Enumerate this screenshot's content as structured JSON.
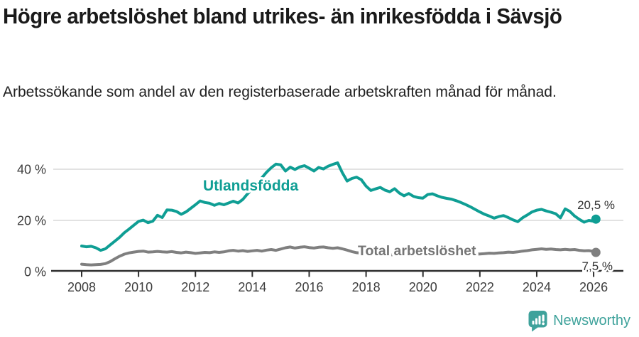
{
  "header": {
    "title": "Högre arbetslöshet bland utrikes- än inrikesfödda i Sävsjö",
    "subtitle": "Arbetssökande som andel av den registerbaserade arbetskraften månad för månad."
  },
  "chart_data": {
    "type": "line",
    "x_unit": "decimal_year",
    "x_range": [
      2008,
      2026.08
    ],
    "ylim": [
      0,
      44
    ],
    "grid": "horizontal-only",
    "legend_position": "inline-labels",
    "yticks": [
      {
        "value": 0,
        "label": "0 %"
      },
      {
        "value": 20,
        "label": "20 %"
      },
      {
        "value": 40,
        "label": "40 %"
      }
    ],
    "grid_values": [
      20,
      40
    ],
    "xticks": [
      {
        "value": 2008,
        "label": "2008"
      },
      {
        "value": 2010,
        "label": "2010"
      },
      {
        "value": 2012,
        "label": "2012"
      },
      {
        "value": 2014,
        "label": "2014"
      },
      {
        "value": 2016,
        "label": "2016"
      },
      {
        "value": 2018,
        "label": "2018"
      },
      {
        "value": 2020,
        "label": "2020"
      },
      {
        "value": 2022,
        "label": "2022"
      },
      {
        "value": 2024,
        "label": "2024"
      },
      {
        "value": 2026,
        "label": "2026"
      }
    ],
    "x": [
      2008.0,
      2008.167,
      2008.333,
      2008.5,
      2008.667,
      2008.833,
      2009.0,
      2009.167,
      2009.333,
      2009.5,
      2009.667,
      2009.833,
      2010.0,
      2010.167,
      2010.333,
      2010.5,
      2010.667,
      2010.833,
      2011.0,
      2011.167,
      2011.333,
      2011.5,
      2011.667,
      2011.833,
      2012.0,
      2012.167,
      2012.333,
      2012.5,
      2012.667,
      2012.833,
      2013.0,
      2013.167,
      2013.333,
      2013.5,
      2013.667,
      2013.833,
      2014.0,
      2014.167,
      2014.333,
      2014.5,
      2014.667,
      2014.833,
      2015.0,
      2015.167,
      2015.333,
      2015.5,
      2015.667,
      2015.833,
      2016.0,
      2016.167,
      2016.333,
      2016.5,
      2016.667,
      2016.833,
      2017.0,
      2017.167,
      2017.333,
      2017.5,
      2017.667,
      2017.833,
      2018.0,
      2018.167,
      2018.333,
      2018.5,
      2018.667,
      2018.833,
      2019.0,
      2019.167,
      2019.333,
      2019.5,
      2019.667,
      2019.833,
      2020.0,
      2020.167,
      2020.333,
      2020.5,
      2020.667,
      2020.833,
      2021.0,
      2021.167,
      2021.333,
      2021.5,
      2021.667,
      2021.833,
      2022.0,
      2022.167,
      2022.333,
      2022.5,
      2022.667,
      2022.833,
      2023.0,
      2023.167,
      2023.333,
      2023.5,
      2023.667,
      2023.833,
      2024.0,
      2024.167,
      2024.333,
      2024.5,
      2024.667,
      2024.833,
      2025.0,
      2025.167,
      2025.333,
      2025.5,
      2025.667,
      2025.833,
      2026.0,
      2026.08
    ],
    "series": [
      {
        "name": "Utlandsfödda",
        "color": "#0f9e94",
        "end_label": "20,5 %",
        "end_value": 20.5,
        "values": [
          10.0,
          9.7,
          9.9,
          9.3,
          8.3,
          8.9,
          10.4,
          11.9,
          13.4,
          15.2,
          16.6,
          18.1,
          19.6,
          20.1,
          19.1,
          19.7,
          22.0,
          21.1,
          24.1,
          24.0,
          23.5,
          22.4,
          23.3,
          24.7,
          26.1,
          27.6,
          27.0,
          26.7,
          25.9,
          26.6,
          26.1,
          26.8,
          27.5,
          26.8,
          28.2,
          30.4,
          32.4,
          34.5,
          36.6,
          38.8,
          40.6,
          42.0,
          41.7,
          39.3,
          40.8,
          39.9,
          40.9,
          41.4,
          40.4,
          39.3,
          40.7,
          40.1,
          41.2,
          41.9,
          42.5,
          38.6,
          35.4,
          36.4,
          36.9,
          35.9,
          33.4,
          31.7,
          32.3,
          32.9,
          31.8,
          31.2,
          32.4,
          30.7,
          29.6,
          30.5,
          29.4,
          28.9,
          28.7,
          30.1,
          30.4,
          29.6,
          29.0,
          28.6,
          28.3,
          27.7,
          27.0,
          26.2,
          25.3,
          24.3,
          23.3,
          22.4,
          21.7,
          20.9,
          21.5,
          21.9,
          21.1,
          20.2,
          19.5,
          21.0,
          22.1,
          23.3,
          24.0,
          24.3,
          23.7,
          23.2,
          22.6,
          21.0,
          24.5,
          23.5,
          21.7,
          20.4,
          19.3,
          20.0,
          19.7,
          20.5
        ]
      },
      {
        "name": "Total arbetslöshet",
        "color": "#7f7f7f",
        "label_color": "#757575",
        "end_label": "7,5 %",
        "end_value": 7.5,
        "values": [
          2.9,
          2.7,
          2.6,
          2.7,
          2.8,
          3.1,
          3.9,
          5.0,
          6.0,
          6.8,
          7.3,
          7.6,
          7.9,
          8.0,
          7.6,
          7.7,
          7.9,
          7.7,
          7.6,
          7.8,
          7.5,
          7.3,
          7.6,
          7.4,
          7.1,
          7.3,
          7.5,
          7.4,
          7.7,
          7.5,
          7.7,
          8.1,
          8.3,
          8.0,
          8.2,
          7.9,
          8.1,
          8.3,
          8.0,
          8.4,
          8.6,
          8.3,
          8.8,
          9.3,
          9.6,
          9.2,
          9.5,
          9.7,
          9.4,
          9.2,
          9.5,
          9.6,
          9.3,
          9.1,
          9.3,
          8.9,
          8.4,
          7.8,
          7.4,
          7.2,
          7.0,
          6.8,
          6.9,
          6.7,
          6.6,
          6.5,
          6.7,
          6.5,
          6.4,
          6.6,
          6.4,
          6.5,
          6.7,
          7.6,
          7.9,
          7.7,
          7.5,
          7.3,
          7.2,
          7.0,
          6.9,
          6.8,
          6.7,
          6.8,
          6.9,
          7.0,
          7.2,
          7.1,
          7.3,
          7.4,
          7.6,
          7.5,
          7.7,
          8.0,
          8.2,
          8.5,
          8.7,
          8.9,
          8.7,
          8.8,
          8.6,
          8.5,
          8.7,
          8.5,
          8.6,
          8.3,
          8.1,
          8.2,
          7.9,
          7.5
        ]
      }
    ],
    "colors": {
      "grid": "#d9d9d9",
      "axis": "#2e2e2e",
      "tick_label": "#3d3d3d",
      "value_label": "#333333"
    }
  },
  "footer": {
    "brand": "Newsworthy",
    "brand_color": "#3ea29b"
  }
}
